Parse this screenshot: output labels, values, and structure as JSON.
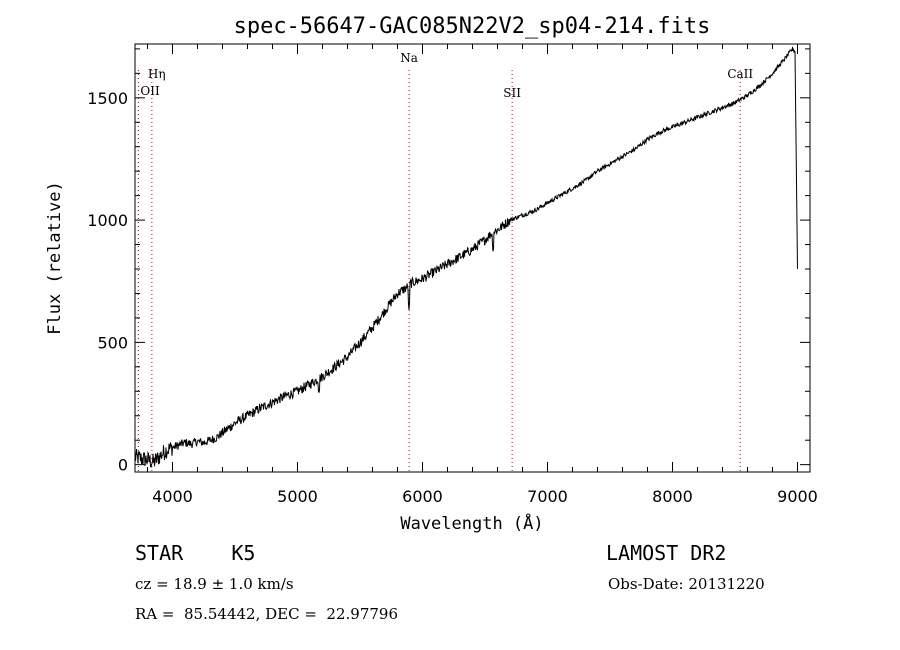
{
  "chart_data": {
    "type": "line",
    "title": "spec-56647-GAC085N22V2_sp04-214.fits",
    "xlabel": "Wavelength (Å)",
    "ylabel": "Flux (relative)",
    "xlim": [
      3700,
      9100
    ],
    "ylim": [
      -30,
      1720
    ],
    "x_ticks": [
      4000,
      5000,
      6000,
      7000,
      8000,
      9000
    ],
    "x_tick_labels": [
      "4000",
      "5000",
      "6000",
      "7000",
      "8000",
      "9000"
    ],
    "y_ticks": [
      0,
      500,
      1000,
      1500
    ],
    "y_tick_labels": [
      "0",
      "500",
      "1000",
      "1500"
    ],
    "line_color": "#000000",
    "marker_color": "#cc0000",
    "spectrum": {
      "x": [
        3700,
        3750,
        3800,
        3850,
        3900,
        3950,
        4000,
        4050,
        4100,
        4150,
        4200,
        4250,
        4300,
        4350,
        4400,
        4450,
        4500,
        4600,
        4700,
        4800,
        4900,
        5000,
        5100,
        5200,
        5300,
        5400,
        5500,
        5600,
        5700,
        5800,
        5890,
        5900,
        6000,
        6100,
        6200,
        6300,
        6400,
        6500,
        6560,
        6600,
        6700,
        6800,
        6900,
        7000,
        7100,
        7200,
        7300,
        7400,
        7500,
        7600,
        7700,
        7800,
        7900,
        8000,
        8100,
        8200,
        8300,
        8400,
        8500,
        8600,
        8700,
        8800,
        8900,
        8960,
        8980,
        9000
      ],
      "y": [
        30,
        25,
        20,
        10,
        35,
        60,
        70,
        80,
        90,
        85,
        95,
        90,
        100,
        110,
        130,
        150,
        170,
        200,
        230,
        255,
        280,
        300,
        330,
        360,
        400,
        440,
        500,
        560,
        630,
        700,
        730,
        740,
        760,
        790,
        820,
        850,
        880,
        920,
        950,
        960,
        1000,
        1020,
        1040,
        1070,
        1100,
        1130,
        1160,
        1200,
        1230,
        1260,
        1290,
        1330,
        1360,
        1380,
        1400,
        1420,
        1440,
        1460,
        1480,
        1510,
        1550,
        1600,
        1660,
        1700,
        1690,
        800
      ]
    },
    "lines": [
      {
        "label": "Hη",
        "x": 3835
      },
      {
        "label": "OII",
        "x": 3727
      },
      {
        "label": "Na",
        "x": 5893
      },
      {
        "label": "SII",
        "x": 6717
      },
      {
        "label": "CaII",
        "x": 8542
      }
    ]
  },
  "info": {
    "object": "STAR    K5",
    "survey": "LAMOST DR2",
    "cz": "cz = 18.9 ± 1.0 km/s",
    "obs_date": "Obs-Date: 20131220",
    "coords": "RA =  85.54442, DEC =  22.97796"
  }
}
